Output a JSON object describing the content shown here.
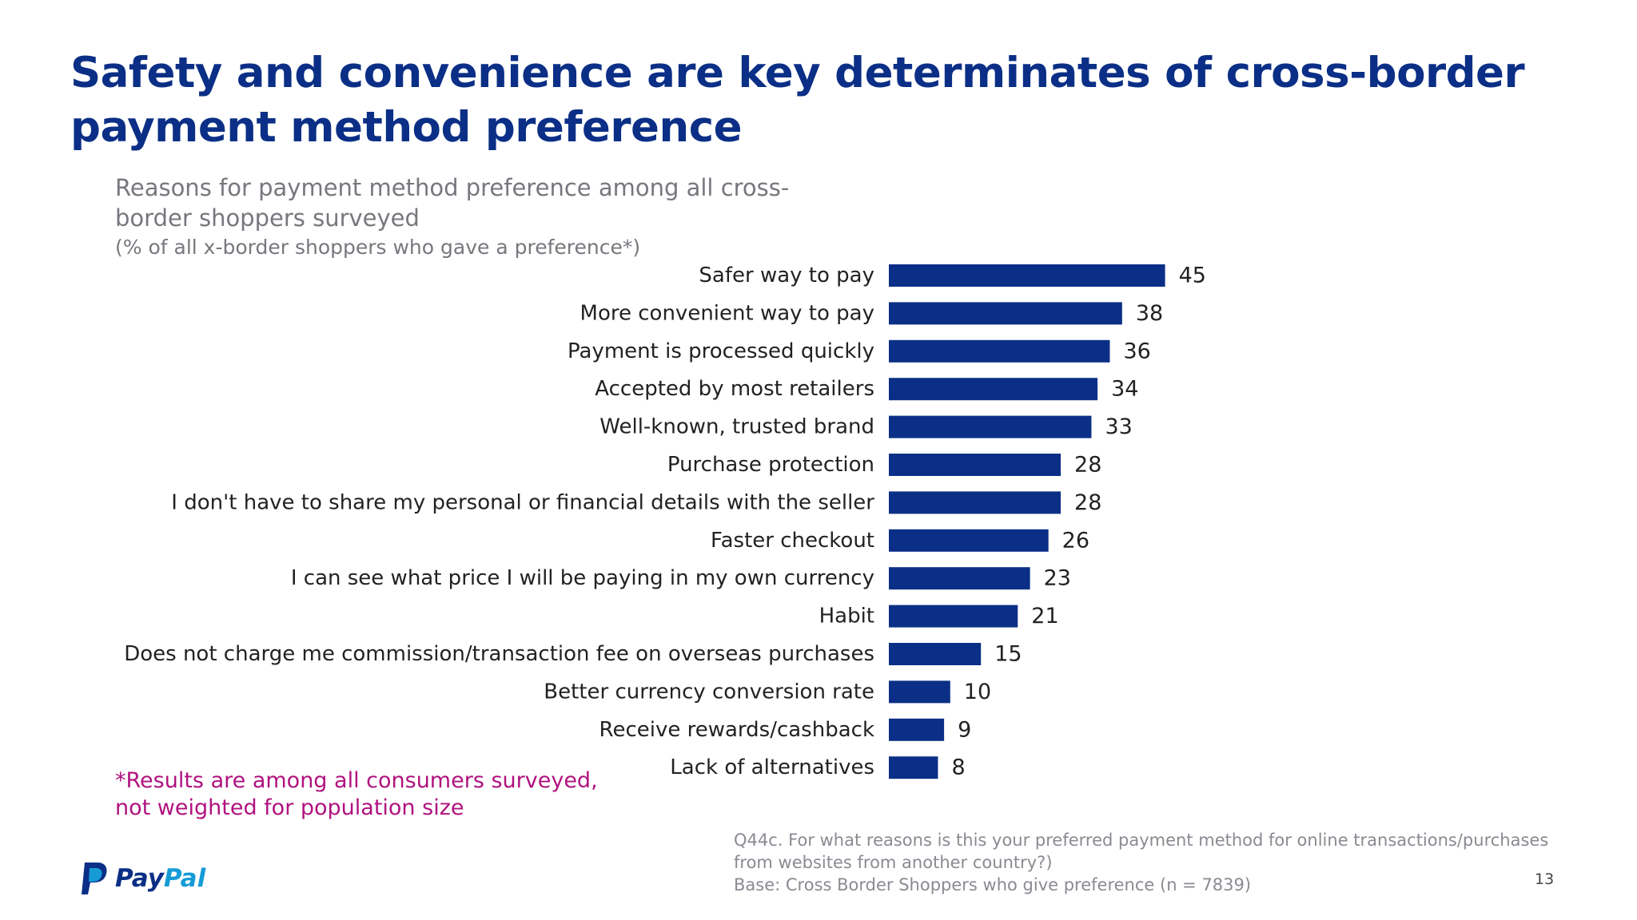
{
  "slide": {
    "title": "Safety and convenience are key determinates of cross-border payment method preference",
    "subtitle": "Reasons for payment method preference among all cross-border shoppers surveyed",
    "subtitle_note": "(% of all x-border shoppers who gave a preference*)",
    "footnote": "*Results are among all consumers surveyed, not weighted for population size",
    "source_question": "Q44c. For what reasons is this your preferred payment method for online transactions/purchases from websites from another country?)",
    "source_base": "Base: Cross Border Shoppers who give preference (n = 7839)",
    "page_number": "13",
    "logo": {
      "pay": "Pay",
      "pal": "Pal",
      "icon": "paypal-p-icon"
    }
  },
  "colors": {
    "title": "#0b2f86",
    "bar": "#0b2f86",
    "subtitle": "#77777e",
    "footnote": "#b0127f",
    "logo_dark": "#0b2f86",
    "logo_light": "#169bd7"
  },
  "chart_data": {
    "type": "bar",
    "orientation": "horizontal",
    "categories": [
      "Safer way to pay",
      "More convenient way to pay",
      "Payment is processed quickly",
      "Accepted by most retailers",
      "Well-known, trusted brand",
      "Purchase protection",
      "I don't have to share my personal or financial details with the seller",
      "Faster checkout",
      "I can see what price I will be paying in my own currency",
      "Habit",
      "Does not charge me commission/transaction fee on overseas purchases",
      "Better currency conversion rate",
      "Receive rewards/cashback",
      "Lack of alternatives"
    ],
    "values": [
      45,
      38,
      36,
      34,
      33,
      28,
      28,
      26,
      23,
      21,
      15,
      10,
      9,
      8
    ],
    "xlim": [
      0,
      50
    ],
    "grid": false,
    "legend": "none"
  }
}
